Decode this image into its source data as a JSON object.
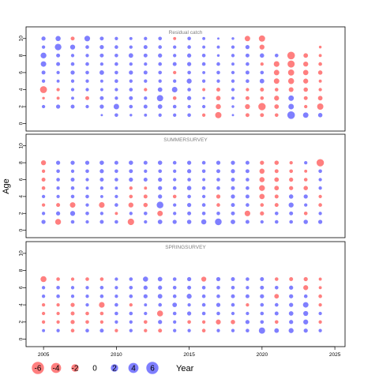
{
  "chart_data": {
    "type": "scatter",
    "ylabel": "Age",
    "xlabel": "Year",
    "x_ticks": [
      2005,
      2010,
      2015,
      2020,
      2025
    ],
    "xlim": [
      2003.8,
      2025.7
    ],
    "y_ticks": [
      0,
      2,
      4,
      6,
      8,
      10
    ],
    "ylim": [
      -0.5,
      11
    ],
    "legend": {
      "values": [
        -6,
        -4,
        -2,
        0,
        2,
        4,
        6
      ],
      "labels": [
        "-6",
        "-4",
        "-2",
        "0",
        "2",
        "4",
        "6"
      ],
      "placement": "bottom-left"
    },
    "colors": {
      "positive": "#4d4dff",
      "negative": "#ff4d4d",
      "frame": "#000000",
      "panel_title": "#808080"
    },
    "panels": [
      {
        "title": "Residual catch",
        "ages": [
          1,
          2,
          3,
          4,
          5,
          6,
          7,
          8,
          9,
          10
        ],
        "years": [
          2005,
          2006,
          2007,
          2008,
          2009,
          2010,
          2011,
          2012,
          2013,
          2014,
          2015,
          2016,
          2017,
          2018,
          2019,
          2020,
          2021,
          2022,
          2023,
          2024
        ],
        "residuals": [
          [
            0,
            0,
            0,
            0,
            0.2,
            0.6,
            0.3,
            0.4,
            0.5,
            0.5,
            0.6,
            -0.5,
            -2.0,
            0.2,
            -0.7,
            -0.7,
            -0.6,
            3.0,
            1.5,
            0.9
          ],
          [
            0.5,
            0.8,
            0.7,
            0.5,
            0.8,
            1.5,
            0.6,
            0.7,
            1.0,
            0.6,
            0.5,
            0.5,
            -1.3,
            0.3,
            -1.2,
            -2.8,
            -1.0,
            1.5,
            -0.5,
            -2.0
          ],
          [
            -0.3,
            -0.4,
            0.4,
            -0.7,
            0.7,
            0.5,
            0.7,
            0.5,
            2.0,
            -0.6,
            0.8,
            0.3,
            -1.0,
            0.4,
            -0.7,
            -0.6,
            -1.2,
            1.5,
            -0.7,
            -1.0
          ],
          [
            -2.5,
            -0.5,
            0.5,
            0.5,
            0.4,
            0.5,
            0.6,
            -0.5,
            1.0,
            1.5,
            0.6,
            -0.4,
            -0.7,
            0.5,
            -0.5,
            -0.7,
            -0.6,
            -1.1,
            -0.9,
            -0.5
          ],
          [
            0.5,
            0.4,
            0.5,
            0.5,
            0.4,
            0.6,
            0.5,
            0.5,
            0.5,
            0.5,
            1.2,
            0.5,
            0.5,
            0.5,
            0.6,
            1.0,
            -1.5,
            -1.8,
            -1.2,
            -0.4
          ],
          [
            0.7,
            0.5,
            0.8,
            0.6,
            1.0,
            0.6,
            0.8,
            0.7,
            0.6,
            -0.5,
            0.6,
            0.4,
            0.6,
            0.5,
            0.7,
            0.6,
            -1.5,
            -1.9,
            -1.4,
            -0.9
          ],
          [
            1.5,
            0.7,
            0.6,
            0.6,
            0.5,
            0.6,
            0.5,
            0.5,
            0.6,
            0.7,
            0.8,
            0.6,
            0.6,
            0.4,
            0.6,
            -0.5,
            -1.6,
            -2.6,
            -1.2,
            -0.6
          ],
          [
            1.7,
            0.7,
            0.5,
            0.5,
            0.7,
            0.6,
            1.0,
            0.7,
            0.8,
            0.5,
            0.8,
            0.6,
            0.3,
            0.5,
            0.7,
            0.9,
            0.6,
            -3.0,
            -1.0,
            -0.4
          ],
          [
            0.5,
            2.2,
            1.2,
            0.6,
            0.8,
            0.6,
            0.5,
            0.7,
            0.6,
            0.5,
            0.6,
            0.4,
            0.4,
            0.5,
            0.8,
            -1.2,
            0,
            0,
            0,
            -0.3
          ],
          [
            0.8,
            1.3,
            -0.7,
            1.6,
            0.7,
            0.5,
            0.4,
            0.5,
            0.6,
            -0.4,
            0.6,
            0.4,
            0.2,
            0.3,
            -1.5,
            -2.0,
            0,
            0,
            0,
            0
          ]
        ]
      },
      {
        "title": "SUMMERSURVEY",
        "ages": [
          1,
          2,
          3,
          4,
          5,
          6,
          7,
          8
        ],
        "years": [
          2005,
          2006,
          2007,
          2008,
          2009,
          2010,
          2011,
          2012,
          2013,
          2014,
          2015,
          2016,
          2017,
          2018,
          2019,
          2020,
          2021,
          2022,
          2023,
          2024
        ],
        "residuals": [
          [
            0.8,
            -1.7,
            0.6,
            0.5,
            0.7,
            0.6,
            -2.1,
            0.5,
            1.0,
            0.8,
            0.9,
            1.3,
            2.3,
            1.0,
            0.7,
            0.5,
            0.6,
            0.6,
            0.9,
            0.8
          ],
          [
            0.5,
            0.8,
            1.2,
            0.6,
            0.5,
            -0.4,
            0.5,
            0.6,
            -1.5,
            0.5,
            0.7,
            0.6,
            0.6,
            0.7,
            -1.6,
            -0.8,
            0.6,
            0.7,
            -0.6,
            0.5
          ],
          [
            -0.5,
            -0.7,
            -1.5,
            0.5,
            -1.6,
            0.6,
            -1.2,
            -0.9,
            2.3,
            0.5,
            0.8,
            0.6,
            -0.6,
            0.7,
            0.6,
            -0.6,
            -0.7,
            1.2,
            0.5,
            -0.6
          ],
          [
            0.5,
            0.5,
            0.6,
            0.6,
            0.4,
            0.5,
            -0.6,
            -0.7,
            0.8,
            -0.6,
            0.6,
            0.5,
            -0.8,
            0.8,
            0.7,
            -1.4,
            -0.7,
            0.9,
            0.8,
            -0.5
          ],
          [
            -0.6,
            0.5,
            0.6,
            0.4,
            0.5,
            0.4,
            -0.5,
            -0.4,
            0.8,
            0.6,
            0.9,
            0.6,
            0.6,
            0.7,
            0.6,
            -1.7,
            -1.0,
            -0.8,
            -0.9,
            0.5
          ],
          [
            -0.7,
            0.6,
            0.7,
            0.5,
            0.7,
            0.6,
            0.8,
            0.7,
            0.8,
            0.5,
            0.6,
            0.4,
            0.6,
            0.7,
            0.6,
            -1.3,
            -1.0,
            -0.8,
            -0.6,
            0.5
          ],
          [
            -0.5,
            0.6,
            0.5,
            0.6,
            0.8,
            0.6,
            0.7,
            0.5,
            0.6,
            0.5,
            0.8,
            0.6,
            0.7,
            0.8,
            0.7,
            -1.3,
            -0.7,
            -0.6,
            -0.4,
            0.6
          ],
          [
            -1.2,
            0.8,
            0.8,
            0.8,
            0.9,
            0.7,
            0.9,
            0.7,
            0.9,
            0.6,
            0.8,
            0.6,
            0.8,
            0.8,
            0.7,
            -0.8,
            -0.9,
            -0.5,
            0.5,
            -2.8
          ]
        ]
      },
      {
        "title": "SPRINGSURVEY",
        "ages": [
          1,
          2,
          3,
          4,
          5,
          6,
          7
        ],
        "years": [
          2005,
          2006,
          2007,
          2008,
          2009,
          2010,
          2011,
          2012,
          2013,
          2014,
          2015,
          2016,
          2017,
          2018,
          2019,
          2020,
          2021,
          2022,
          2023,
          2024
        ],
        "residuals": [
          [
            0.4,
            0.5,
            -0.6,
            0.6,
            0.7,
            -0.5,
            0.5,
            -0.5,
            -0.7,
            0.5,
            0.5,
            -0.6,
            0.5,
            0.5,
            0.6,
            2.0,
            1.0,
            1.2,
            0.8,
            0.5
          ],
          [
            -0.5,
            -0.5,
            -0.8,
            -0.6,
            -0.5,
            0.5,
            0.5,
            -0.6,
            0.8,
            0.5,
            -0.6,
            -0.5,
            -1.2,
            -0.9,
            0.8,
            0.6,
            -0.6,
            0.8,
            1.2,
            -0.5
          ],
          [
            -0.5,
            -0.5,
            -0.7,
            -0.6,
            -0.6,
            0.6,
            0.6,
            0.5,
            -1.8,
            0.6,
            0.8,
            0.6,
            0.6,
            0.5,
            0.5,
            0.6,
            0.7,
            1.0,
            1.2,
            0.5
          ],
          [
            -0.5,
            -0.5,
            -0.8,
            0.5,
            -1.6,
            0.6,
            -0.5,
            0.4,
            0.6,
            1.0,
            0.5,
            0.6,
            0.8,
            0.6,
            -0.5,
            0.6,
            0.6,
            0.8,
            1.5,
            -0.5
          ],
          [
            0.5,
            0.6,
            0.5,
            0.5,
            0.6,
            0.5,
            0.6,
            0.8,
            1.0,
            0.6,
            1.2,
            0.6,
            0.6,
            0.7,
            0.7,
            0.8,
            -1.0,
            0.8,
            0.6,
            -0.6
          ],
          [
            0.5,
            0.6,
            0.5,
            0.5,
            0.6,
            0.5,
            0.6,
            0.8,
            0.8,
            0.6,
            0.7,
            0.6,
            0.6,
            0.6,
            0.5,
            0.7,
            0.6,
            0.8,
            -1.2,
            -0.4
          ],
          [
            -1.8,
            -0.6,
            -0.5,
            -0.6,
            -0.6,
            0.5,
            0.6,
            1.3,
            1.0,
            0.6,
            0.8,
            -1.2,
            0.8,
            0.7,
            0.6,
            0.7,
            -0.6,
            -0.7,
            -0.8,
            -0.4
          ]
        ]
      }
    ]
  }
}
